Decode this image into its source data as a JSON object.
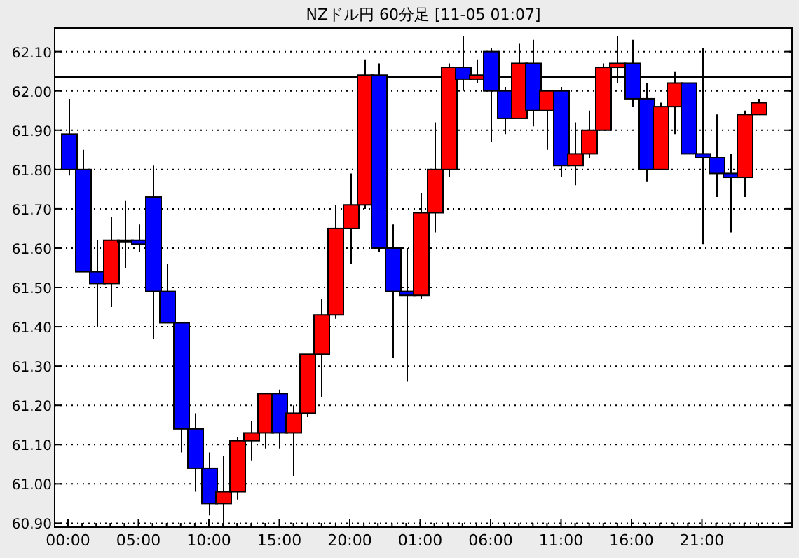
{
  "chart_data": {
    "type": "candlestick",
    "title": "NZドル円 60分足 [11-05 01:07]",
    "categories": [
      "00:00",
      null,
      null,
      null,
      null,
      "05:00",
      null,
      null,
      null,
      null,
      "10:00",
      null,
      null,
      null,
      null,
      "15:00",
      null,
      null,
      null,
      null,
      "20:00",
      null,
      null,
      null,
      null,
      "01:00",
      null,
      null,
      null,
      null,
      "06:00",
      null,
      null,
      null,
      null,
      "11:00",
      null,
      null,
      null,
      null,
      "16:00",
      null,
      null,
      null,
      null,
      "21:00",
      null,
      null,
      null,
      null
    ],
    "ohlc": [
      [
        61.89,
        61.98,
        61.785,
        61.8
      ],
      [
        61.8,
        61.85,
        61.54,
        61.54
      ],
      [
        61.54,
        61.62,
        61.4,
        61.51
      ],
      [
        61.51,
        61.68,
        61.45,
        61.62
      ],
      [
        61.62,
        61.72,
        61.55,
        61.62
      ],
      [
        61.62,
        61.66,
        61.59,
        61.61
      ],
      [
        61.73,
        61.81,
        61.37,
        61.49
      ],
      [
        61.49,
        61.56,
        61.41,
        61.41
      ],
      [
        61.41,
        61.41,
        61.08,
        61.14
      ],
      [
        61.14,
        61.18,
        60.98,
        61.04
      ],
      [
        61.04,
        61.08,
        60.92,
        60.95
      ],
      [
        60.95,
        61.07,
        60.89,
        60.98
      ],
      [
        60.98,
        61.12,
        60.96,
        61.11
      ],
      [
        61.11,
        61.16,
        61.06,
        61.13
      ],
      [
        61.13,
        61.23,
        61.09,
        61.23
      ],
      [
        61.23,
        61.24,
        61.09,
        61.13
      ],
      [
        61.13,
        61.2,
        61.02,
        61.18
      ],
      [
        61.18,
        61.33,
        61.17,
        61.33
      ],
      [
        61.33,
        61.47,
        61.22,
        61.43
      ],
      [
        61.43,
        61.71,
        61.42,
        61.65
      ],
      [
        61.65,
        61.79,
        61.56,
        61.71
      ],
      [
        61.71,
        62.08,
        61.7,
        62.04
      ],
      [
        62.04,
        62.07,
        61.59,
        61.6
      ],
      [
        61.6,
        61.66,
        61.32,
        61.49
      ],
      [
        61.49,
        61.6,
        61.26,
        61.48
      ],
      [
        61.48,
        61.74,
        61.47,
        61.69
      ],
      [
        61.69,
        61.92,
        61.64,
        61.8
      ],
      [
        61.8,
        62.07,
        61.78,
        62.06
      ],
      [
        62.06,
        62.14,
        62.0,
        62.03
      ],
      [
        62.03,
        62.08,
        62.02,
        62.04
      ],
      [
        62.1,
        62.11,
        61.87,
        62.0
      ],
      [
        62.0,
        62.01,
        61.89,
        61.93
      ],
      [
        61.93,
        62.12,
        61.93,
        62.07
      ],
      [
        62.07,
        62.13,
        61.91,
        61.95
      ],
      [
        61.95,
        62.0,
        61.85,
        62.0
      ],
      [
        62.0,
        62.01,
        61.78,
        61.81
      ],
      [
        61.81,
        61.92,
        61.76,
        61.84
      ],
      [
        61.84,
        61.95,
        61.83,
        61.9
      ],
      [
        61.9,
        62.07,
        61.9,
        62.06
      ],
      [
        62.06,
        62.14,
        62.02,
        62.07
      ],
      [
        62.07,
        62.13,
        61.96,
        61.98
      ],
      [
        61.98,
        62.02,
        61.77,
        61.8
      ],
      [
        61.8,
        61.97,
        61.8,
        61.96
      ],
      [
        61.96,
        62.05,
        61.89,
        62.02
      ],
      [
        62.02,
        62.02,
        61.84,
        61.84
      ],
      [
        61.84,
        62.11,
        61.61,
        61.83
      ],
      [
        61.83,
        61.94,
        61.73,
        61.79
      ],
      [
        61.79,
        61.84,
        61.64,
        61.78
      ],
      [
        61.78,
        61.95,
        61.73,
        61.94
      ],
      [
        61.94,
        61.98,
        61.94,
        61.97
      ]
    ],
    "colors": [
      "#0000ff",
      "#0000ff",
      "#0000ff",
      "#ff0000",
      "#ff0000",
      "#0000ff",
      "#0000ff",
      "#0000ff",
      "#0000ff",
      "#0000ff",
      "#0000ff",
      "#ff0000",
      "#ff0000",
      "#ff0000",
      "#ff0000",
      "#0000ff",
      "#ff0000",
      "#ff0000",
      "#ff0000",
      "#ff0000",
      "#ff0000",
      "#ff0000",
      "#0000ff",
      "#0000ff",
      "#0000ff",
      "#ff0000",
      "#ff0000",
      "#ff0000",
      "#0000ff",
      "#ff0000",
      "#0000ff",
      "#0000ff",
      "#ff0000",
      "#0000ff",
      "#ff0000",
      "#0000ff",
      "#ff0000",
      "#ff0000",
      "#ff0000",
      "#ff0000",
      "#0000ff",
      "#0000ff",
      "#ff0000",
      "#ff0000",
      "#0000ff",
      "#0000ff",
      "#0000ff",
      "#0000ff",
      "#ff0000",
      "#ff0000"
    ],
    "ylim": [
      60.89,
      62.16
    ],
    "yticks": [
      {
        "value": 60.9,
        "label": "60.90"
      },
      {
        "value": 61.0,
        "label": "61.00"
      },
      {
        "value": 61.1,
        "label": "61.10"
      },
      {
        "value": 61.2,
        "label": "61.20"
      },
      {
        "value": 61.3,
        "label": "61.30"
      },
      {
        "value": 61.4,
        "label": "61.40"
      },
      {
        "value": 61.5,
        "label": "61.50"
      },
      {
        "value": 61.6,
        "label": "61.60"
      },
      {
        "value": 61.7,
        "label": "61.70"
      },
      {
        "value": 61.8,
        "label": "61.80"
      },
      {
        "value": 61.9,
        "label": "61.90"
      },
      {
        "value": 62.0,
        "label": "62.00"
      },
      {
        "value": 62.1,
        "label": "62.10"
      }
    ],
    "grid": "y",
    "ref_lines": [
      {
        "axis": "y",
        "value": 62.035,
        "color": "#000000"
      }
    ]
  }
}
